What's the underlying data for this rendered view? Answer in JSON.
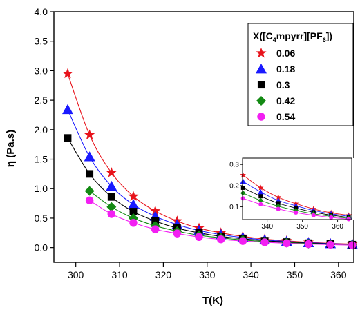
{
  "chart_data": {
    "type": "scatter",
    "xlabel": "T(K)",
    "ylabel": "η (Pa.s)",
    "xlim": [
      295,
      363.5
    ],
    "ylim": [
      -0.25,
      4.0
    ],
    "x_ticks": [
      300,
      310,
      320,
      330,
      340,
      350,
      360
    ],
    "y_ticks": [
      0.0,
      0.5,
      1.0,
      1.5,
      2.0,
      2.5,
      3.0,
      3.5,
      4.0
    ],
    "x_tick_labels": [
      "300",
      "310",
      "320",
      "330",
      "340",
      "350",
      "360"
    ],
    "y_tick_labels": [
      "0.0",
      "0.5",
      "1.0",
      "1.5",
      "2.0",
      "2.5",
      "3.0",
      "3.5",
      "4.0"
    ],
    "legend": {
      "position": "top-right",
      "title_parts": [
        {
          "text": "X([C",
          "sub": false
        },
        {
          "text": "4",
          "sub": true
        },
        {
          "text": "mpyrr][PF",
          "sub": false
        },
        {
          "text": "6",
          "sub": true
        },
        {
          "text": "])",
          "sub": false
        }
      ]
    },
    "x": [
      298.15,
      303.15,
      308.15,
      313.15,
      318.15,
      323.15,
      328.15,
      333.15,
      338.15,
      343.15,
      348.15,
      353.15,
      358.15,
      363.15
    ],
    "series": [
      {
        "name": "0.06",
        "marker": "star",
        "color": "#e8131b",
        "values": [
          2.95,
          1.91,
          1.27,
          0.87,
          0.62,
          0.45,
          0.33,
          0.25,
          0.19,
          0.145,
          0.115,
          0.09,
          0.072,
          0.06
        ]
      },
      {
        "name": "0.18",
        "marker": "triangle",
        "color": "#1a1aff",
        "values": [
          2.34,
          1.54,
          1.04,
          0.73,
          0.53,
          0.39,
          0.29,
          0.22,
          0.17,
          0.13,
          0.105,
          0.083,
          0.067,
          0.055
        ]
      },
      {
        "name": "0.3",
        "marker": "square",
        "color": "#000000",
        "values": [
          1.86,
          1.25,
          0.86,
          0.61,
          0.45,
          0.33,
          0.25,
          0.19,
          0.15,
          0.117,
          0.094,
          0.075,
          0.061,
          0.05
        ]
      },
      {
        "name": "0.42",
        "marker": "diamond",
        "color": "#138a13",
        "values": [
          null,
          0.96,
          0.69,
          0.5,
          0.37,
          0.28,
          0.21,
          0.165,
          0.13,
          0.103,
          0.083,
          0.067,
          0.055,
          0.046
        ]
      },
      {
        "name": "0.54",
        "marker": "circle",
        "color": "#f21ff2",
        "values": [
          null,
          0.8,
          0.57,
          0.42,
          0.31,
          0.24,
          0.18,
          0.14,
          0.112,
          0.09,
          0.073,
          0.06,
          0.05,
          0.042
        ]
      }
    ],
    "inset": {
      "xlim": [
        333,
        364
      ],
      "ylim": [
        0.04,
        0.33
      ],
      "x_ticks": [
        340,
        350,
        360
      ],
      "y_ticks": [
        0.1,
        0.2,
        0.3
      ],
      "x_tick_labels": [
        "340",
        "350",
        "360"
      ],
      "y_tick_labels": [
        "0.1",
        "0.2",
        "0.3"
      ]
    }
  }
}
